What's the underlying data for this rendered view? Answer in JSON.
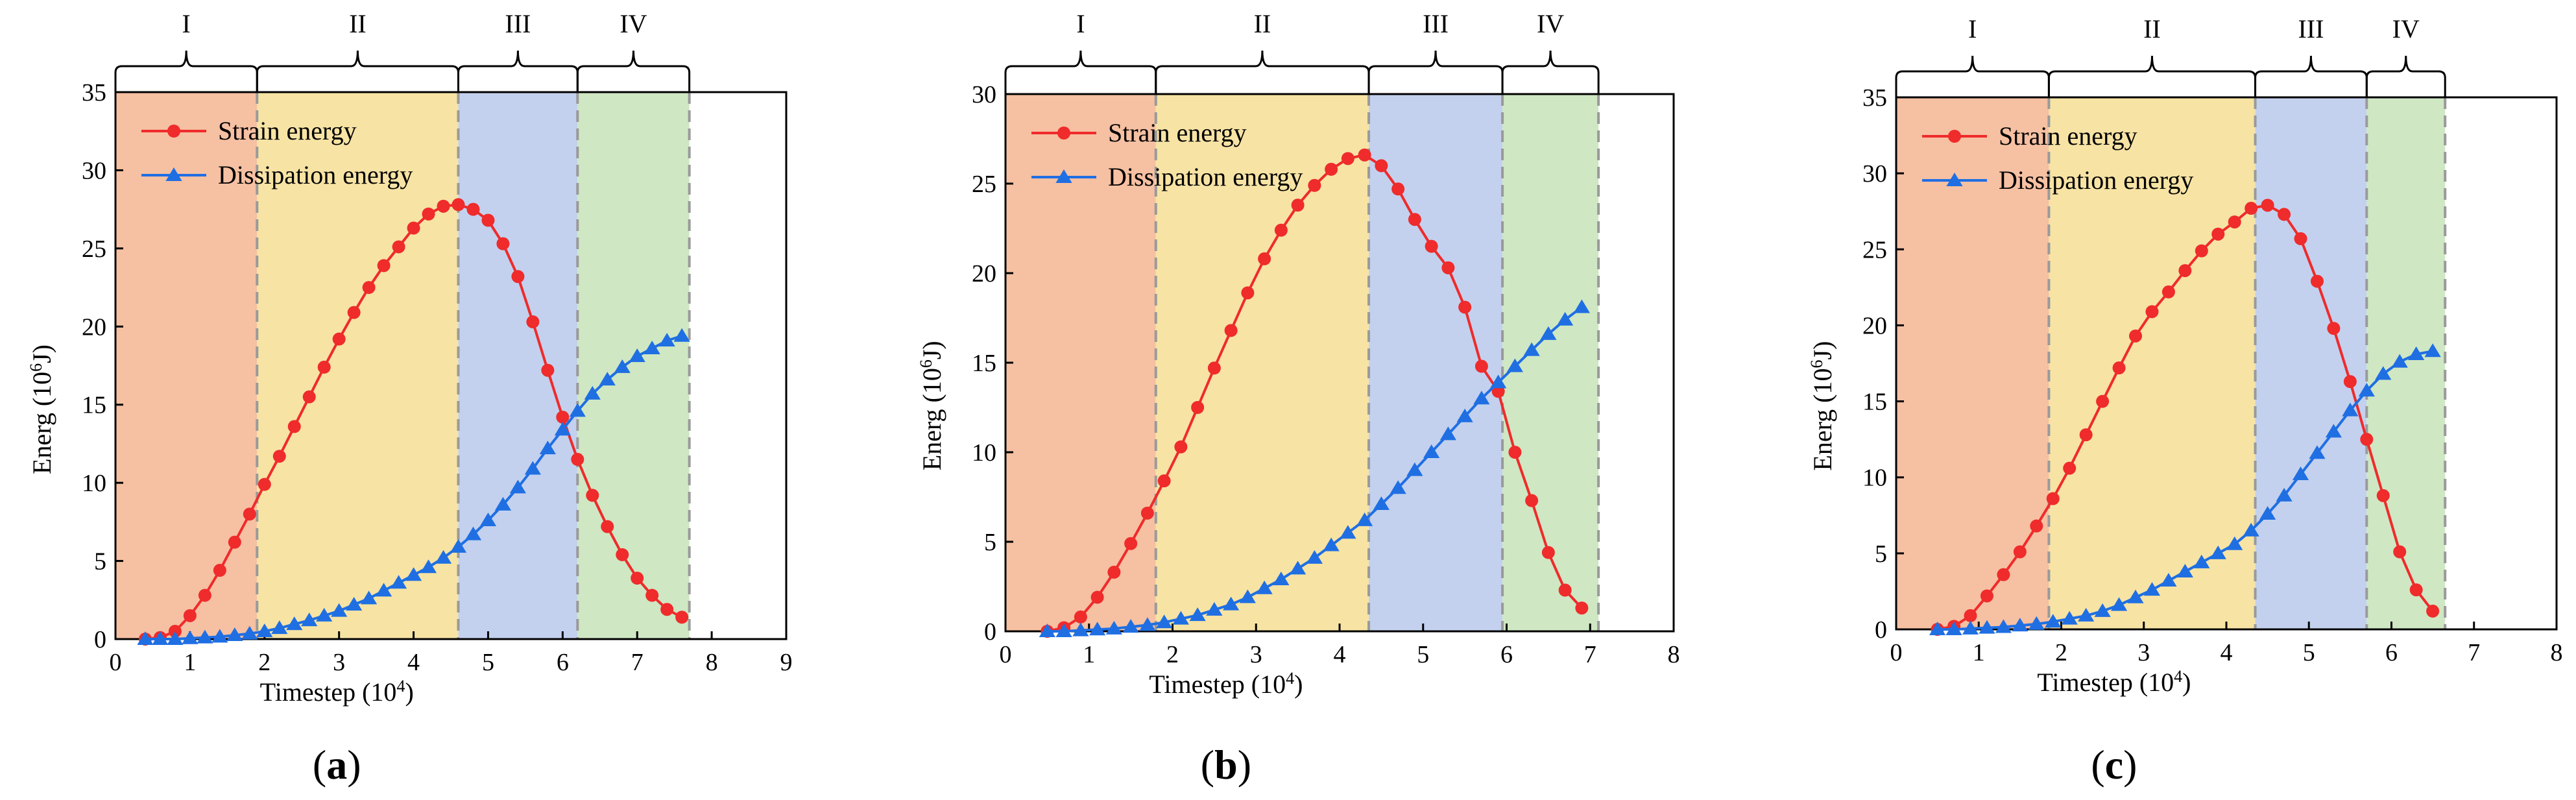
{
  "figure": {
    "colors": {
      "strain": "#ef2b2b",
      "dissipation": "#1f6fe3",
      "stage_I": "#f6c0a2",
      "stage_II": "#f7e3a4",
      "stage_III": "#c3d1ee",
      "stage_IV": "#cfe7c3",
      "divider": "#9a9a9a"
    }
  },
  "chart_data": [
    {
      "type": "line",
      "panel_label": "a",
      "xlabel": "Timestep (10",
      "xlabel_sup": "4",
      "xlabel_close": ")",
      "ylabel": "Energ (10",
      "ylabel_sup": "6",
      "ylabel_close": "J)",
      "xlim": [
        0,
        9
      ],
      "ylim": [
        0,
        35
      ],
      "xticks": [
        0,
        1,
        2,
        3,
        4,
        5,
        6,
        7,
        8,
        9
      ],
      "yticks": [
        0,
        5,
        10,
        15,
        20,
        25,
        30,
        35
      ],
      "data_end": 7.7,
      "stages": [
        {
          "label": "I",
          "start": 0,
          "end": 1.9,
          "color_key": "stage_I"
        },
        {
          "label": "II",
          "start": 1.9,
          "end": 4.6,
          "color_key": "stage_II"
        },
        {
          "label": "III",
          "start": 4.6,
          "end": 6.2,
          "color_key": "stage_III"
        },
        {
          "label": "IV",
          "start": 6.2,
          "end": 7.7,
          "color_key": "stage_IV"
        }
      ],
      "series": [
        {
          "name": "Strain energy",
          "color_key": "strain",
          "marker": "circle",
          "x": [
            0.4,
            0.6,
            0.8,
            1.0,
            1.2,
            1.4,
            1.6,
            1.8,
            2.0,
            2.2,
            2.4,
            2.6,
            2.8,
            3.0,
            3.2,
            3.4,
            3.6,
            3.8,
            4.0,
            4.2,
            4.4,
            4.6,
            4.8,
            5.0,
            5.2,
            5.4,
            5.6,
            5.8,
            6.0,
            6.2,
            6.4,
            6.6,
            6.8,
            7.0,
            7.2,
            7.4,
            7.6
          ],
          "y": [
            0.0,
            0.1,
            0.5,
            1.5,
            2.8,
            4.4,
            6.2,
            8.0,
            9.9,
            11.7,
            13.6,
            15.5,
            17.4,
            19.2,
            20.9,
            22.5,
            23.9,
            25.1,
            26.3,
            27.2,
            27.7,
            27.8,
            27.5,
            26.8,
            25.3,
            23.2,
            20.3,
            17.2,
            14.2,
            11.5,
            9.2,
            7.2,
            5.4,
            3.9,
            2.8,
            1.9,
            1.4
          ]
        },
        {
          "name": "Dissipation energy",
          "color_key": "dissipation",
          "marker": "triangle",
          "x": [
            0.4,
            0.6,
            0.8,
            1.0,
            1.2,
            1.4,
            1.6,
            1.8,
            2.0,
            2.2,
            2.4,
            2.6,
            2.8,
            3.0,
            3.2,
            3.4,
            3.6,
            3.8,
            4.0,
            4.2,
            4.4,
            4.6,
            4.8,
            5.0,
            5.2,
            5.4,
            5.6,
            5.8,
            6.0,
            6.2,
            6.4,
            6.6,
            6.8,
            7.0,
            7.2,
            7.4,
            7.6
          ],
          "y": [
            0.0,
            0.0,
            0.0,
            0.05,
            0.1,
            0.15,
            0.25,
            0.35,
            0.5,
            0.7,
            0.95,
            1.2,
            1.5,
            1.8,
            2.2,
            2.6,
            3.1,
            3.6,
            4.1,
            4.6,
            5.2,
            5.9,
            6.7,
            7.6,
            8.6,
            9.7,
            10.9,
            12.2,
            13.4,
            14.6,
            15.7,
            16.6,
            17.4,
            18.1,
            18.6,
            19.1,
            19.4
          ]
        }
      ]
    },
    {
      "type": "line",
      "panel_label": "b",
      "xlabel": "Timestep (10",
      "xlabel_sup": "4",
      "xlabel_close": ")",
      "ylabel": "Energ (10",
      "ylabel_sup": "6",
      "ylabel_close": "J)",
      "xlim": [
        0,
        8
      ],
      "ylim": [
        0,
        30
      ],
      "xticks": [
        0,
        1,
        2,
        3,
        4,
        5,
        6,
        7,
        8
      ],
      "yticks": [
        0,
        5,
        10,
        15,
        20,
        25,
        30
      ],
      "data_end": 7.1,
      "stages": [
        {
          "label": "I",
          "start": 0,
          "end": 1.8,
          "color_key": "stage_I"
        },
        {
          "label": "II",
          "start": 1.8,
          "end": 4.35,
          "color_key": "stage_II"
        },
        {
          "label": "III",
          "start": 4.35,
          "end": 5.95,
          "color_key": "stage_III"
        },
        {
          "label": "IV",
          "start": 5.95,
          "end": 7.1,
          "color_key": "stage_IV"
        }
      ],
      "series": [
        {
          "name": "Strain energy",
          "color_key": "strain",
          "marker": "circle",
          "x": [
            0.5,
            0.7,
            0.9,
            1.1,
            1.3,
            1.5,
            1.7,
            1.9,
            2.1,
            2.3,
            2.5,
            2.7,
            2.9,
            3.1,
            3.3,
            3.5,
            3.7,
            3.9,
            4.1,
            4.3,
            4.5,
            4.7,
            4.9,
            5.1,
            5.3,
            5.5,
            5.7,
            5.9,
            6.1,
            6.3,
            6.5,
            6.7,
            6.9
          ],
          "y": [
            0.0,
            0.2,
            0.8,
            1.9,
            3.3,
            4.9,
            6.6,
            8.4,
            10.3,
            12.5,
            14.7,
            16.8,
            18.9,
            20.8,
            22.4,
            23.8,
            24.9,
            25.8,
            26.4,
            26.6,
            26.0,
            24.7,
            23.0,
            21.5,
            20.3,
            18.1,
            14.8,
            13.4,
            10.0,
            7.3,
            4.4,
            2.3,
            1.3
          ]
        },
        {
          "name": "Dissipation energy",
          "color_key": "dissipation",
          "marker": "triangle",
          "x": [
            0.5,
            0.7,
            0.9,
            1.1,
            1.3,
            1.5,
            1.7,
            1.9,
            2.1,
            2.3,
            2.5,
            2.7,
            2.9,
            3.1,
            3.3,
            3.5,
            3.7,
            3.9,
            4.1,
            4.3,
            4.5,
            4.7,
            4.9,
            5.1,
            5.3,
            5.5,
            5.7,
            5.9,
            6.1,
            6.3,
            6.5,
            6.7,
            6.9
          ],
          "y": [
            0.0,
            0.0,
            0.05,
            0.1,
            0.15,
            0.25,
            0.35,
            0.5,
            0.7,
            0.9,
            1.2,
            1.5,
            1.9,
            2.4,
            2.9,
            3.5,
            4.1,
            4.8,
            5.5,
            6.2,
            7.1,
            8.0,
            9.0,
            10.0,
            11.0,
            12.0,
            13.0,
            13.9,
            14.8,
            15.7,
            16.6,
            17.4,
            18.1
          ]
        }
      ]
    },
    {
      "type": "line",
      "panel_label": "c",
      "xlabel": "Timestep (10",
      "xlabel_sup": "4",
      "xlabel_close": ")",
      "ylabel": "Energ (10",
      "ylabel_sup": "6",
      "ylabel_close": "J)",
      "xlim": [
        0,
        8
      ],
      "ylim": [
        0,
        35
      ],
      "xticks": [
        0,
        1,
        2,
        3,
        4,
        5,
        6,
        7,
        8
      ],
      "yticks": [
        0,
        5,
        10,
        15,
        20,
        25,
        30,
        35
      ],
      "data_end": 6.65,
      "stages": [
        {
          "label": "I",
          "start": 0,
          "end": 1.85,
          "color_key": "stage_I"
        },
        {
          "label": "II",
          "start": 1.85,
          "end": 4.35,
          "color_key": "stage_II"
        },
        {
          "label": "III",
          "start": 4.35,
          "end": 5.7,
          "color_key": "stage_III"
        },
        {
          "label": "IV",
          "start": 5.7,
          "end": 6.65,
          "color_key": "stage_IV"
        }
      ],
      "series": [
        {
          "name": "Strain energy",
          "color_key": "strain",
          "marker": "circle",
          "x": [
            0.5,
            0.7,
            0.9,
            1.1,
            1.3,
            1.5,
            1.7,
            1.9,
            2.1,
            2.3,
            2.5,
            2.7,
            2.9,
            3.1,
            3.3,
            3.5,
            3.7,
            3.9,
            4.1,
            4.3,
            4.5,
            4.7,
            4.9,
            5.1,
            5.3,
            5.5,
            5.7,
            5.9,
            6.1,
            6.3,
            6.5
          ],
          "y": [
            0.0,
            0.2,
            0.9,
            2.2,
            3.6,
            5.1,
            6.8,
            8.6,
            10.6,
            12.8,
            15.0,
            17.2,
            19.3,
            20.9,
            22.2,
            23.6,
            24.9,
            26.0,
            26.8,
            27.7,
            27.9,
            27.3,
            25.7,
            22.9,
            19.8,
            16.3,
            12.5,
            8.8,
            5.1,
            2.6,
            1.2
          ]
        },
        {
          "name": "Dissipation energy",
          "color_key": "dissipation",
          "marker": "triangle",
          "x": [
            0.5,
            0.7,
            0.9,
            1.1,
            1.3,
            1.5,
            1.7,
            1.9,
            2.1,
            2.3,
            2.5,
            2.7,
            2.9,
            3.1,
            3.3,
            3.5,
            3.7,
            3.9,
            4.1,
            4.3,
            4.5,
            4.7,
            4.9,
            5.1,
            5.3,
            5.5,
            5.7,
            5.9,
            6.1,
            6.3,
            6.5
          ],
          "y": [
            0.0,
            0.0,
            0.05,
            0.1,
            0.15,
            0.25,
            0.35,
            0.5,
            0.7,
            0.9,
            1.2,
            1.6,
            2.1,
            2.6,
            3.2,
            3.8,
            4.4,
            5.0,
            5.6,
            6.5,
            7.6,
            8.8,
            10.2,
            11.6,
            13.0,
            14.4,
            15.7,
            16.8,
            17.6,
            18.1,
            18.3
          ]
        }
      ]
    }
  ]
}
